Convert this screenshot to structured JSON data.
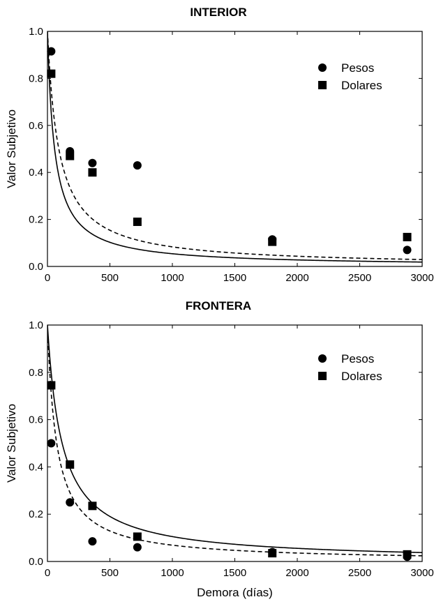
{
  "colors": {
    "ink": "#000000",
    "background": "#ffffff"
  },
  "chart_data": [
    {
      "type": "scatter",
      "title": "INTERIOR",
      "xlabel": "",
      "ylabel": "Valor Subjetivo",
      "xlim": [
        0,
        3000
      ],
      "ylim": [
        0,
        1.0
      ],
      "xticks": [
        "0",
        "500",
        "1000",
        "1500",
        "2000",
        "2500",
        "3000"
      ],
      "yticks": [
        "0.0",
        "0.2",
        "0.4",
        "0.6",
        "0.8",
        "1.0"
      ],
      "grid": false,
      "legend_position": "top-right",
      "series": [
        {
          "name": "Pesos",
          "marker": "circle",
          "x": [
            30,
            180,
            360,
            720,
            1800,
            2880
          ],
          "values": [
            0.915,
            0.49,
            0.44,
            0.43,
            0.115,
            0.07
          ],
          "fit": {
            "k": 0.011,
            "style": "dashed"
          }
        },
        {
          "name": "Dolares",
          "marker": "square",
          "x": [
            30,
            180,
            360,
            720,
            1800,
            2880
          ],
          "values": [
            0.82,
            0.47,
            0.4,
            0.19,
            0.105,
            0.125
          ],
          "fit": {
            "k": 0.0175,
            "style": "solid"
          }
        }
      ]
    },
    {
      "type": "scatter",
      "title": "FRONTERA",
      "xlabel": "Demora (días)",
      "ylabel": "Valor Subjetivo",
      "xlim": [
        0,
        3000
      ],
      "ylim": [
        0,
        1.0
      ],
      "xticks": [
        "0",
        "500",
        "1000",
        "1500",
        "2000",
        "2500",
        "3000"
      ],
      "yticks": [
        "0.0",
        "0.2",
        "0.4",
        "0.6",
        "0.8",
        "1.0"
      ],
      "grid": false,
      "legend_position": "top-right",
      "series": [
        {
          "name": "Pesos",
          "marker": "circle",
          "x": [
            30,
            180,
            360,
            720,
            1800,
            2880
          ],
          "values": [
            0.5,
            0.25,
            0.085,
            0.06,
            0.04,
            0.02
          ],
          "fit": {
            "k": 0.0135,
            "style": "dashed"
          }
        },
        {
          "name": "Dolares",
          "marker": "square",
          "x": [
            30,
            180,
            360,
            720,
            1800,
            2880
          ],
          "values": [
            0.745,
            0.41,
            0.235,
            0.105,
            0.035,
            0.03
          ],
          "fit": {
            "k": 0.0085,
            "style": "solid"
          }
        }
      ]
    }
  ]
}
